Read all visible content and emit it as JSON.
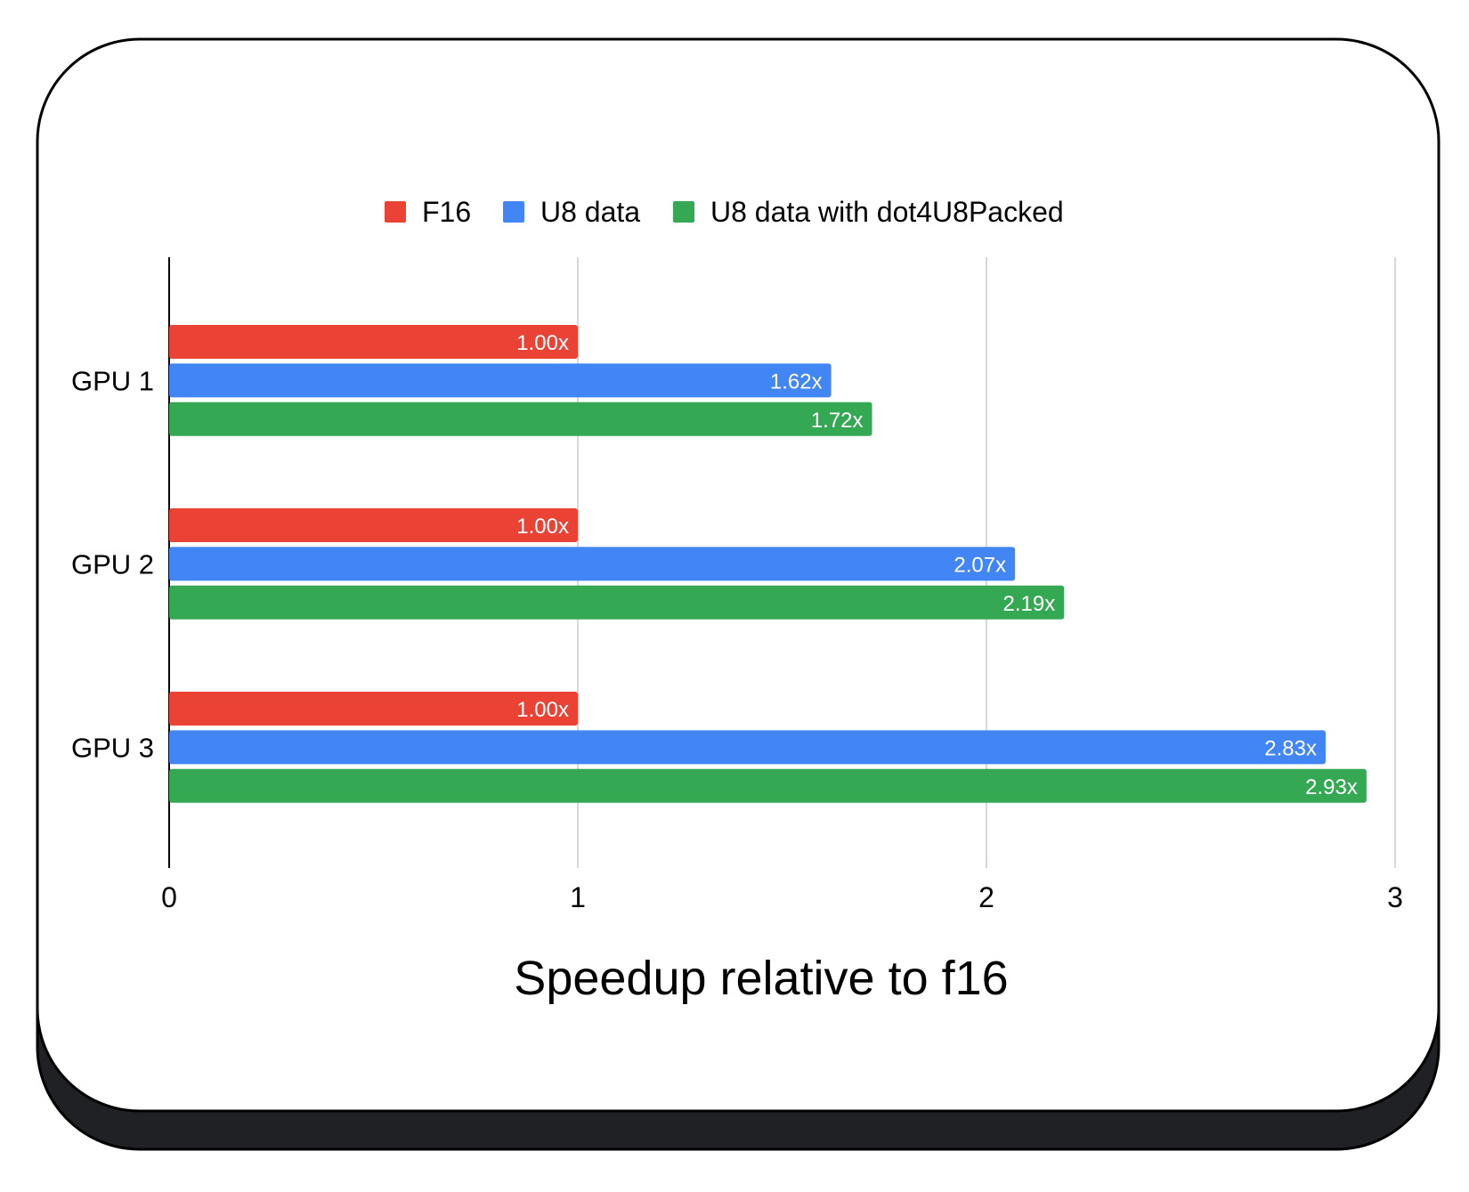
{
  "chart_data": {
    "type": "bar",
    "orientation": "horizontal",
    "categories": [
      "GPU 1",
      "GPU 2",
      "GPU 3"
    ],
    "series": [
      {
        "name": "F16",
        "color": "#ea4335",
        "values": [
          1.0,
          1.0,
          1.0
        ],
        "labels": [
          "1.00x",
          "1.00x",
          "1.00x"
        ]
      },
      {
        "name": "U8 data",
        "color": "#4285f4",
        "values": [
          1.62,
          2.07,
          2.83
        ],
        "labels": [
          "1.62x",
          "2.07x",
          "2.83x"
        ]
      },
      {
        "name": "U8 data with dot4U8Packed",
        "color": "#34a853",
        "values": [
          1.72,
          2.19,
          2.93
        ],
        "labels": [
          "1.72x",
          "2.19x",
          "2.93x"
        ]
      }
    ],
    "xlabel": "Speedup relative to f16",
    "xlim": [
      0,
      3
    ],
    "xticks": [
      "0",
      "1",
      "2",
      "3"
    ],
    "grid": true,
    "legend_position": "top"
  }
}
